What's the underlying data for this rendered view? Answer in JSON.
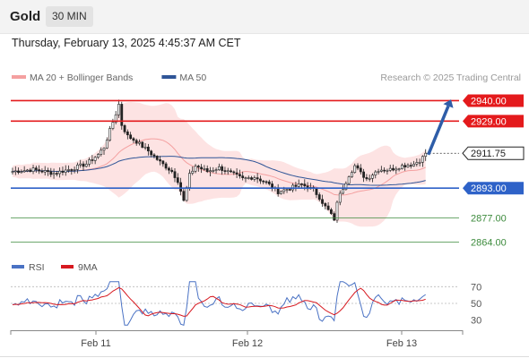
{
  "header": {
    "title": "Gold",
    "timeframe": "30 MIN"
  },
  "datetime": "Thursday, February 13, 2025 4:45:37 AM CET",
  "legend": {
    "items": [
      {
        "label": "MA 20 + Bollinger Bands",
        "color": "#f4a0a0"
      },
      {
        "label": "MA 50",
        "color": "#2f5597"
      }
    ],
    "copyright": "Research © 2025 Trading Central"
  },
  "rsi_legend": {
    "items": [
      {
        "label": "RSI",
        "color": "#4a72c4"
      },
      {
        "label": "9MA",
        "color": "#d71920"
      }
    ]
  },
  "chart_data": [
    {
      "type": "candlestick",
      "x_labels": [
        "Feb 11",
        "Feb 12",
        "Feb 13"
      ],
      "ylim": [
        2858,
        2946
      ],
      "last_price": {
        "value": 2911.75,
        "label": "2911.75"
      },
      "levels": [
        {
          "value": 2940.0,
          "label": "2940.00",
          "color": "#e41a1c",
          "kind": "resistance"
        },
        {
          "value": 2929.0,
          "label": "2929.00",
          "color": "#e41a1c",
          "kind": "resistance"
        },
        {
          "value": 2893.0,
          "label": "2893.00",
          "color": "#2e62c8",
          "kind": "pivot"
        },
        {
          "value": 2877.0,
          "label": "2877.00",
          "color": "#3d8b3d",
          "kind": "support"
        },
        {
          "value": 2864.0,
          "label": "2864.00",
          "color": "#3d8b3d",
          "kind": "support"
        }
      ],
      "target_arrow": {
        "from": 2911.0,
        "to": 2940.0,
        "color": "#2e5da8"
      }
    },
    {
      "type": "line",
      "indicator": "RSI",
      "ylim": [
        20,
        80
      ],
      "ticks": [
        "70",
        "50",
        "30"
      ],
      "reference_lines": [
        70,
        50
      ]
    }
  ]
}
